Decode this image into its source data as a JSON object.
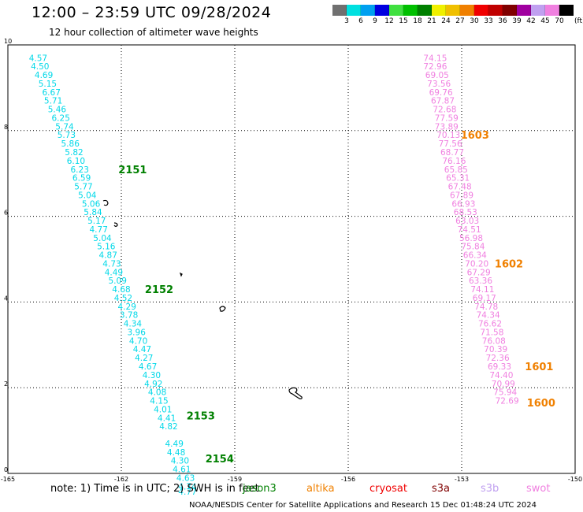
{
  "header": {
    "title": "12:00 – 23:59 UTC 09/28/2024",
    "subtitle": "12 hour collection of altimeter wave heights"
  },
  "colorbar": {
    "colors": [
      "#707070",
      "#00e0e0",
      "#00a0f0",
      "#0000e0",
      "#40e040",
      "#00c000",
      "#008000",
      "#f0f000",
      "#f0c000",
      "#f08000",
      "#f00000",
      "#c00000",
      "#800000",
      "#a000a0",
      "#c0a0f0",
      "#f080e0",
      "#000000"
    ],
    "labels": [
      "3",
      "6",
      "9",
      "12",
      "15",
      "18",
      "21",
      "24",
      "27",
      "30",
      "33",
      "36",
      "39",
      "42",
      "45",
      "70"
    ],
    "unit": "(ft)"
  },
  "note": "note:  1) Time is in UTC;  2) SWH is in feet",
  "legend": [
    {
      "name": "jason3",
      "color": "#008000"
    },
    {
      "name": "altika",
      "color": "#f08000"
    },
    {
      "name": "cryosat",
      "color": "#f00000"
    },
    {
      "name": "s3a",
      "color": "#800000"
    },
    {
      "name": "s3b",
      "color": "#c0a0f0"
    },
    {
      "name": "swot",
      "color": "#f080e0"
    }
  ],
  "footer": "NOAA/NESDIS Center for Satellite Applications and Research     15 Dec 01:48:24 UTC 2024",
  "chart_data": {
    "type": "scatter",
    "xlim": [
      -165,
      -150
    ],
    "ylim": [
      0,
      10
    ],
    "xticks": [
      "-165",
      "-162",
      "-159",
      "-156",
      "-153",
      "-150"
    ],
    "yticks": [
      "0",
      "2",
      "4",
      "6",
      "8",
      "10"
    ],
    "grid": true,
    "series": [
      {
        "name": "jason3",
        "label_color": "#00d8e8",
        "points": [
          {
            "x": -164.2,
            "y": 9.7,
            "swh": "4.57"
          },
          {
            "x": -164.15,
            "y": 9.5,
            "swh": "4.50"
          },
          {
            "x": -164.05,
            "y": 9.3,
            "swh": "4.69"
          },
          {
            "x": -163.95,
            "y": 9.1,
            "swh": "5.15"
          },
          {
            "x": -163.85,
            "y": 8.9,
            "swh": "6.67"
          },
          {
            "x": -163.8,
            "y": 8.7,
            "swh": "5.71"
          },
          {
            "x": -163.7,
            "y": 8.5,
            "swh": "5.46"
          },
          {
            "x": -163.6,
            "y": 8.3,
            "swh": "6.25"
          },
          {
            "x": -163.5,
            "y": 8.1,
            "swh": "5.74"
          },
          {
            "x": -163.45,
            "y": 7.9,
            "swh": "5.73"
          },
          {
            "x": -163.35,
            "y": 7.7,
            "swh": "5.86"
          },
          {
            "x": -163.25,
            "y": 7.5,
            "swh": "5.82"
          },
          {
            "x": -163.2,
            "y": 7.3,
            "swh": "6.10"
          },
          {
            "x": -163.1,
            "y": 7.1,
            "swh": "6.23"
          },
          {
            "x": -163.05,
            "y": 6.9,
            "swh": "6.59"
          },
          {
            "x": -163.0,
            "y": 6.7,
            "swh": "5.77"
          },
          {
            "x": -162.9,
            "y": 6.5,
            "swh": "5.04"
          },
          {
            "x": -162.8,
            "y": 6.3,
            "swh": "5.06"
          },
          {
            "x": -162.75,
            "y": 6.1,
            "swh": "5.84"
          },
          {
            "x": -162.65,
            "y": 5.9,
            "swh": "5.17"
          },
          {
            "x": -162.6,
            "y": 5.7,
            "swh": "4.77"
          },
          {
            "x": -162.5,
            "y": 5.5,
            "swh": "5.04"
          },
          {
            "x": -162.4,
            "y": 5.3,
            "swh": "5.16"
          },
          {
            "x": -162.35,
            "y": 5.1,
            "swh": "4.87"
          },
          {
            "x": -162.25,
            "y": 4.9,
            "swh": "4.73"
          },
          {
            "x": -162.2,
            "y": 4.7,
            "swh": "4.49"
          },
          {
            "x": -162.1,
            "y": 4.5,
            "swh": "5.09"
          },
          {
            "x": -162.0,
            "y": 4.3,
            "swh": "4.68"
          },
          {
            "x": -161.95,
            "y": 4.1,
            "swh": "4.52"
          },
          {
            "x": -161.85,
            "y": 3.9,
            "swh": "4.29"
          },
          {
            "x": -161.8,
            "y": 3.7,
            "swh": "3.78"
          },
          {
            "x": -161.7,
            "y": 3.5,
            "swh": "4.34"
          },
          {
            "x": -161.6,
            "y": 3.3,
            "swh": "3.96"
          },
          {
            "x": -161.55,
            "y": 3.1,
            "swh": "4.70"
          },
          {
            "x": -161.45,
            "y": 2.9,
            "swh": "4.47"
          },
          {
            "x": -161.4,
            "y": 2.7,
            "swh": "4.27"
          },
          {
            "x": -161.3,
            "y": 2.5,
            "swh": "4.67"
          },
          {
            "x": -161.2,
            "y": 2.3,
            "swh": "4.30"
          },
          {
            "x": -161.15,
            "y": 2.1,
            "swh": "4.92"
          },
          {
            "x": -161.05,
            "y": 1.9,
            "swh": "4.08"
          },
          {
            "x": -161.0,
            "y": 1.7,
            "swh": "4.15"
          },
          {
            "x": -160.9,
            "y": 1.5,
            "swh": "4.01"
          },
          {
            "x": -160.8,
            "y": 1.3,
            "swh": "4.41"
          },
          {
            "x": -160.75,
            "y": 1.1,
            "swh": "4.82"
          },
          {
            "x": -160.6,
            "y": 0.7,
            "swh": "4.49"
          },
          {
            "x": -160.55,
            "y": 0.5,
            "swh": "4.48"
          },
          {
            "x": -160.45,
            "y": 0.3,
            "swh": "4.30"
          },
          {
            "x": -160.4,
            "y": 0.1,
            "swh": "4.61"
          },
          {
            "x": -160.3,
            "y": -0.1,
            "swh": "4.63"
          },
          {
            "x": -160.25,
            "y": -0.3,
            "swh": "4.74"
          },
          {
            "x": -160.25,
            "y": -0.42,
            "swh": "4.77"
          }
        ]
      },
      {
        "name": "swot",
        "label_color": "#f080e0",
        "points": [
          {
            "x": -153.7,
            "y": 9.7,
            "swh": "74.15"
          },
          {
            "x": -153.7,
            "y": 9.5,
            "swh": "72.96"
          },
          {
            "x": -153.65,
            "y": 9.3,
            "swh": "69.05"
          },
          {
            "x": -153.6,
            "y": 9.1,
            "swh": "73.56"
          },
          {
            "x": -153.55,
            "y": 8.9,
            "swh": "69.76"
          },
          {
            "x": -153.5,
            "y": 8.7,
            "swh": "67.87"
          },
          {
            "x": -153.45,
            "y": 8.5,
            "swh": "72.68"
          },
          {
            "x": -153.4,
            "y": 8.3,
            "swh": "77.59"
          },
          {
            "x": -153.4,
            "y": 8.1,
            "swh": "73.89"
          },
          {
            "x": -153.35,
            "y": 7.9,
            "swh": "70.13"
          },
          {
            "x": -153.3,
            "y": 7.7,
            "swh": "77.56"
          },
          {
            "x": -153.25,
            "y": 7.5,
            "swh": "68.77"
          },
          {
            "x": -153.2,
            "y": 7.3,
            "swh": "76.16"
          },
          {
            "x": -153.15,
            "y": 7.1,
            "swh": "65.85"
          },
          {
            "x": -153.1,
            "y": 6.9,
            "swh": "65.31"
          },
          {
            "x": -153.05,
            "y": 6.7,
            "swh": "67.48"
          },
          {
            "x": -153.0,
            "y": 6.5,
            "swh": "67.89"
          },
          {
            "x": -152.95,
            "y": 6.3,
            "swh": "66.93"
          },
          {
            "x": -152.9,
            "y": 6.1,
            "swh": "68.53"
          },
          {
            "x": -152.85,
            "y": 5.9,
            "swh": "63.03"
          },
          {
            "x": -152.8,
            "y": 5.7,
            "swh": "74.51"
          },
          {
            "x": -152.75,
            "y": 5.5,
            "swh": "56.98"
          },
          {
            "x": -152.7,
            "y": 5.3,
            "swh": "75.84"
          },
          {
            "x": -152.65,
            "y": 5.1,
            "swh": "66.34"
          },
          {
            "x": -152.6,
            "y": 4.9,
            "swh": "70.20"
          },
          {
            "x": -152.55,
            "y": 4.7,
            "swh": "67.29"
          },
          {
            "x": -152.5,
            "y": 4.5,
            "swh": "63.36"
          },
          {
            "x": -152.45,
            "y": 4.3,
            "swh": "74.11"
          },
          {
            "x": -152.4,
            "y": 4.1,
            "swh": "69.17"
          },
          {
            "x": -152.35,
            "y": 3.9,
            "swh": "74.78"
          },
          {
            "x": -152.3,
            "y": 3.7,
            "swh": "74.34"
          },
          {
            "x": -152.25,
            "y": 3.5,
            "swh": "76.62"
          },
          {
            "x": -152.2,
            "y": 3.3,
            "swh": "71.58"
          },
          {
            "x": -152.15,
            "y": 3.1,
            "swh": "76.08"
          },
          {
            "x": -152.1,
            "y": 2.9,
            "swh": "70.39"
          },
          {
            "x": -152.05,
            "y": 2.7,
            "swh": "72.36"
          },
          {
            "x": -152.0,
            "y": 2.5,
            "swh": "69.33"
          },
          {
            "x": -151.95,
            "y": 2.3,
            "swh": "74.40"
          },
          {
            "x": -151.9,
            "y": 2.1,
            "swh": "70.99"
          },
          {
            "x": -151.85,
            "y": 1.9,
            "swh": "75.94"
          },
          {
            "x": -151.8,
            "y": 1.7,
            "swh": "72.69"
          }
        ]
      }
    ],
    "time_labels": [
      {
        "x": -161.7,
        "y": 7.1,
        "text": "2151",
        "color": "#008000"
      },
      {
        "x": -161.0,
        "y": 4.3,
        "text": "2152",
        "color": "#008000"
      },
      {
        "x": -159.9,
        "y": 1.35,
        "text": "2153",
        "color": "#008000"
      },
      {
        "x": -159.4,
        "y": 0.35,
        "text": "2154",
        "color": "#008000"
      },
      {
        "x": -152.65,
        "y": 7.9,
        "text": "1603",
        "color": "#f08000"
      },
      {
        "x": -151.75,
        "y": 4.9,
        "text": "1602",
        "color": "#f08000"
      },
      {
        "x": -150.95,
        "y": 2.5,
        "text": "1601",
        "color": "#f08000"
      },
      {
        "x": -150.9,
        "y": 1.65,
        "text": "1600",
        "color": "#f08000"
      }
    ]
  }
}
